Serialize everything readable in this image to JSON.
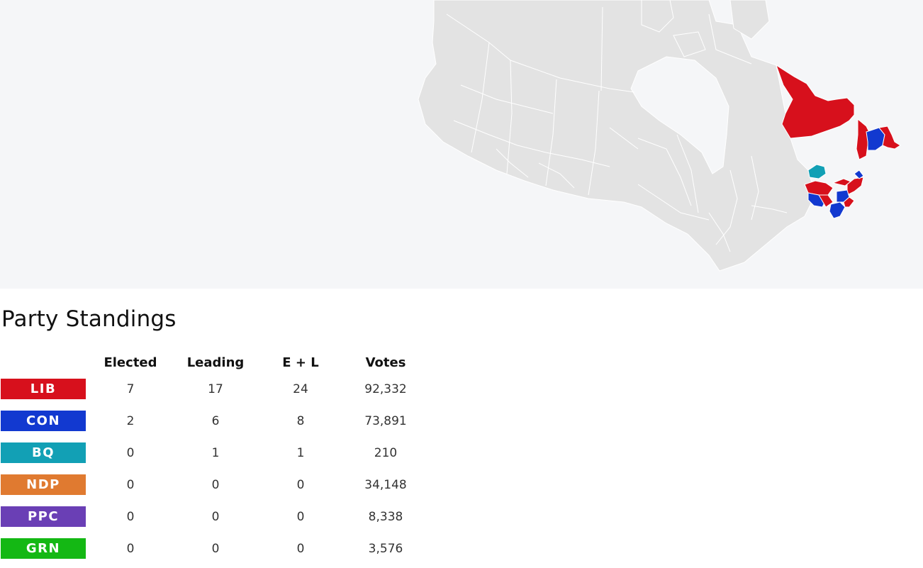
{
  "map": {
    "colors": {
      "background": "#f5f6f8",
      "land": "#e3e3e3",
      "border": "#ffffff",
      "LIB": "#d7101c",
      "CON": "#1239d0",
      "BQ": "#12a0b5"
    }
  },
  "standings": {
    "title": "Party Standings",
    "headers": {
      "party": "",
      "elected": "Elected",
      "leading": "Leading",
      "el": "E + L",
      "votes": "Votes"
    },
    "rows": [
      {
        "party": "LIB",
        "color": "#d7101c",
        "elected": "7",
        "leading": "17",
        "el": "24",
        "votes": "92,332"
      },
      {
        "party": "CON",
        "color": "#1239d0",
        "elected": "2",
        "leading": "6",
        "el": "8",
        "votes": "73,891"
      },
      {
        "party": "BQ",
        "color": "#12a0b5",
        "elected": "0",
        "leading": "1",
        "el": "1",
        "votes": "210"
      },
      {
        "party": "NDP",
        "color": "#e07a30",
        "elected": "0",
        "leading": "0",
        "el": "0",
        "votes": "34,148"
      },
      {
        "party": "PPC",
        "color": "#6a3fb5",
        "elected": "0",
        "leading": "0",
        "el": "0",
        "votes": "8,338"
      },
      {
        "party": "GRN",
        "color": "#14b814",
        "elected": "0",
        "leading": "0",
        "el": "0",
        "votes": "3,576"
      }
    ]
  }
}
